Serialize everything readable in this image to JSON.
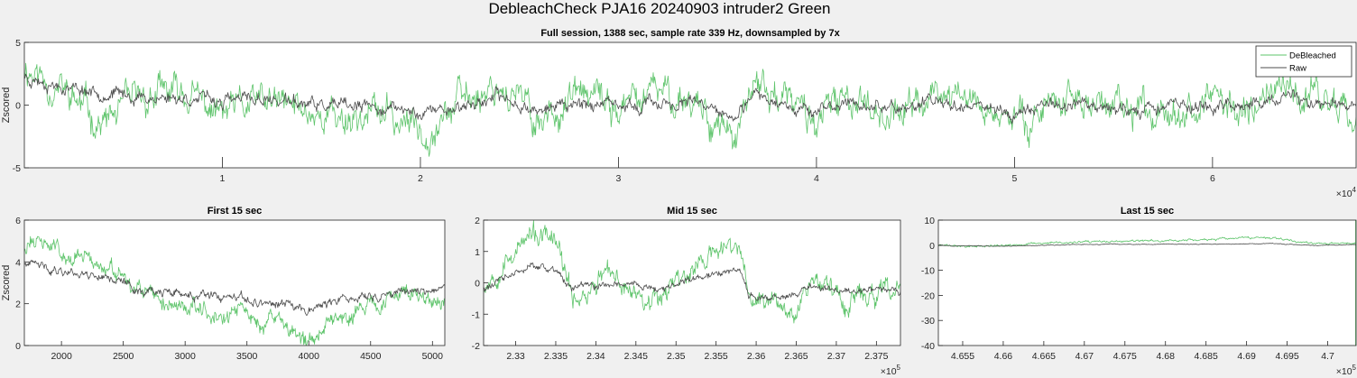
{
  "figure_title": "DebleachCheck PJA16 20240903  intruder2 Green",
  "colors": {
    "debleached": "#5ec46b",
    "raw": "#4d4d4d",
    "axes_bg": "#ffffff",
    "figure_bg": "#f0f0f0"
  },
  "chart_data": [
    {
      "type": "line",
      "title": "Full session, 1388 sec, sample rate 339 Hz, downsampled by 7x",
      "ylabel": "Zscored",
      "xlabel": "",
      "xlim": [
        0,
        67250
      ],
      "ylim": [
        -5,
        5
      ],
      "yticks": [
        -5,
        0,
        5
      ],
      "xticks": [
        1,
        2,
        3,
        4,
        5,
        6
      ],
      "x_exponent": "×10^4",
      "x_exponent_base": "×10",
      "x_exponent_power": "4",
      "legend": {
        "position": "top-right",
        "entries": [
          "DeBleached",
          "Raw"
        ]
      },
      "grid": false,
      "series": [
        {
          "name": "DeBleached",
          "seed": 11,
          "amplitude": 1.55,
          "noise": 1.0,
          "anchors": [
            [
              0,
              3.2
            ],
            [
              2000,
              1.0
            ],
            [
              4000,
              -1.5
            ],
            [
              6000,
              0.6
            ],
            [
              8000,
              1.0
            ],
            [
              10000,
              -0.8
            ],
            [
              12000,
              0.2
            ],
            [
              14000,
              -0.3
            ],
            [
              16000,
              -1.0
            ],
            [
              18000,
              -0.6
            ],
            [
              20000,
              -2.0
            ],
            [
              22000,
              0.3
            ],
            [
              24000,
              1.8
            ],
            [
              26000,
              -1.2
            ],
            [
              28000,
              0.8
            ],
            [
              30000,
              -0.4
            ],
            [
              32000,
              1.0
            ],
            [
              34000,
              0.4
            ],
            [
              35000,
              -1.5
            ],
            [
              36000,
              -2.8
            ],
            [
              37000,
              1.8
            ],
            [
              38000,
              0.8
            ],
            [
              40000,
              -1.2
            ],
            [
              42000,
              0.7
            ],
            [
              44000,
              -0.8
            ],
            [
              46000,
              0.9
            ],
            [
              48000,
              0.5
            ],
            [
              50000,
              -1.6
            ],
            [
              52000,
              0.7
            ],
            [
              54000,
              0.3
            ],
            [
              56000,
              -1.0
            ],
            [
              58000,
              0.5
            ],
            [
              60000,
              -0.2
            ],
            [
              62000,
              0.3
            ],
            [
              64000,
              1.3
            ],
            [
              66000,
              0.4
            ],
            [
              67250,
              0.5
            ]
          ]
        },
        {
          "name": "Raw",
          "seed": 23,
          "amplitude": 0.55,
          "noise": 0.45,
          "anchors": [
            [
              0,
              2.3
            ],
            [
              2000,
              1.5
            ],
            [
              4000,
              1.0
            ],
            [
              6000,
              0.6
            ],
            [
              8000,
              0.6
            ],
            [
              10000,
              0.3
            ],
            [
              12000,
              0.5
            ],
            [
              14000,
              0.1
            ],
            [
              16000,
              -0.2
            ],
            [
              18000,
              -0.2
            ],
            [
              20000,
              -0.6
            ],
            [
              22000,
              -0.1
            ],
            [
              24000,
              0.6
            ],
            [
              26000,
              -0.4
            ],
            [
              28000,
              0.3
            ],
            [
              30000,
              -0.3
            ],
            [
              32000,
              0.2
            ],
            [
              34000,
              0.0
            ],
            [
              35000,
              -0.6
            ],
            [
              36000,
              -1.1
            ],
            [
              37000,
              0.8
            ],
            [
              38000,
              0.4
            ],
            [
              40000,
              -0.5
            ],
            [
              42000,
              0.2
            ],
            [
              44000,
              -0.3
            ],
            [
              46000,
              0.3
            ],
            [
              48000,
              0.1
            ],
            [
              50000,
              -0.7
            ],
            [
              52000,
              0.2
            ],
            [
              54000,
              0.1
            ],
            [
              56000,
              -0.4
            ],
            [
              58000,
              0.1
            ],
            [
              60000,
              -0.1
            ],
            [
              62000,
              0.0
            ],
            [
              64000,
              0.4
            ],
            [
              66000,
              0.0
            ],
            [
              67250,
              0.0
            ]
          ]
        }
      ]
    },
    {
      "type": "line",
      "title": "First 15 sec",
      "ylabel": "Zscored",
      "xlim": [
        1700,
        5100
      ],
      "ylim": [
        0,
        6
      ],
      "yticks": [
        0,
        2,
        4,
        6
      ],
      "xticks": [
        2000,
        2500,
        3000,
        3500,
        4000,
        4500,
        5000
      ],
      "x_exponent": "",
      "grid": false,
      "series": [
        {
          "name": "DeBleached",
          "seed": 31,
          "amplitude": 0.45,
          "noise": 0.35,
          "anchors": [
            [
              1700,
              4.8
            ],
            [
              1850,
              5.0
            ],
            [
              2000,
              4.5
            ],
            [
              2200,
              4.1
            ],
            [
              2400,
              3.6
            ],
            [
              2550,
              2.6
            ],
            [
              2750,
              2.4
            ],
            [
              2950,
              1.7
            ],
            [
              3100,
              2.1
            ],
            [
              3300,
              1.2
            ],
            [
              3450,
              1.7
            ],
            [
              3600,
              1.0
            ],
            [
              3750,
              1.3
            ],
            [
              3900,
              0.4
            ],
            [
              4000,
              0.1
            ],
            [
              4150,
              1.4
            ],
            [
              4300,
              1.5
            ],
            [
              4450,
              2.0
            ],
            [
              4600,
              1.7
            ],
            [
              4750,
              2.7
            ],
            [
              4900,
              2.4
            ],
            [
              5100,
              2.1
            ]
          ]
        },
        {
          "name": "Raw",
          "seed": 41,
          "amplitude": 0.25,
          "noise": 0.16,
          "anchors": [
            [
              1700,
              3.9
            ],
            [
              2000,
              3.6
            ],
            [
              2400,
              3.3
            ],
            [
              2600,
              2.7
            ],
            [
              3000,
              2.4
            ],
            [
              3400,
              2.2
            ],
            [
              3700,
              2.0
            ],
            [
              4000,
              1.8
            ],
            [
              4300,
              2.2
            ],
            [
              4600,
              2.4
            ],
            [
              4900,
              2.7
            ],
            [
              5100,
              2.7
            ]
          ]
        }
      ]
    },
    {
      "type": "line",
      "title": "Mid 15 sec",
      "ylabel": "",
      "xlim": [
        232600,
        237800
      ],
      "ylim": [
        -2,
        2
      ],
      "yticks": [
        -2,
        -1,
        0,
        1,
        2
      ],
      "xticks": [
        2.33,
        2.335,
        2.34,
        2.345,
        2.35,
        2.355,
        2.36,
        2.365,
        2.37,
        2.375
      ],
      "x_exponent": "×10^5",
      "x_exponent_base": "×10",
      "x_exponent_power": "5",
      "grid": false,
      "series": [
        {
          "name": "DeBleached",
          "seed": 53,
          "amplitude": 0.35,
          "noise": 0.3,
          "anchors": [
            [
              232600,
              -0.1
            ],
            [
              232900,
              0.8
            ],
            [
              233200,
              1.5
            ],
            [
              233500,
              1.3
            ],
            [
              233700,
              -0.5
            ],
            [
              233900,
              -0.3
            ],
            [
              234100,
              0.3
            ],
            [
              234400,
              -0.2
            ],
            [
              234700,
              -0.5
            ],
            [
              235000,
              0.1
            ],
            [
              235200,
              0.4
            ],
            [
              235500,
              1.0
            ],
            [
              235800,
              1.2
            ],
            [
              235900,
              -0.6
            ],
            [
              236200,
              -0.5
            ],
            [
              236500,
              -0.8
            ],
            [
              236700,
              0.2
            ],
            [
              236900,
              -0.1
            ],
            [
              237100,
              -0.6
            ],
            [
              237400,
              -0.4
            ],
            [
              237800,
              -0.3
            ]
          ]
        },
        {
          "name": "Raw",
          "seed": 61,
          "amplitude": 0.12,
          "noise": 0.1,
          "anchors": [
            [
              232600,
              -0.2
            ],
            [
              232900,
              0.2
            ],
            [
              233200,
              0.5
            ],
            [
              233500,
              0.4
            ],
            [
              233700,
              -0.2
            ],
            [
              234000,
              -0.1
            ],
            [
              234400,
              0.0
            ],
            [
              234800,
              -0.2
            ],
            [
              235200,
              0.1
            ],
            [
              235500,
              0.3
            ],
            [
              235800,
              0.4
            ],
            [
              235900,
              -0.4
            ],
            [
              236300,
              -0.5
            ],
            [
              236700,
              -0.1
            ],
            [
              237100,
              -0.3
            ],
            [
              237500,
              -0.2
            ],
            [
              237800,
              -0.2
            ]
          ]
        }
      ]
    },
    {
      "type": "line",
      "title": "Last 15 sec",
      "ylabel": "",
      "xlim": [
        465200,
        470350
      ],
      "ylim": [
        -40,
        10
      ],
      "yticks": [
        -40,
        -30,
        -20,
        -10,
        0,
        10
      ],
      "xticks": [
        4.655,
        4.66,
        4.665,
        4.67,
        4.675,
        4.68,
        4.685,
        4.69,
        4.695,
        4.7
      ],
      "x_exponent": "×10^5",
      "x_exponent_base": "×10",
      "x_exponent_power": "5",
      "grid": false,
      "series": [
        {
          "name": "DeBleached",
          "seed": 71,
          "amplitude": 0.45,
          "noise": 0.4,
          "end_spike": [
            -40,
            10
          ],
          "anchors": [
            [
              465200,
              0.0
            ],
            [
              465600,
              -0.5
            ],
            [
              466000,
              -0.2
            ],
            [
              466500,
              0.8
            ],
            [
              467000,
              1.2
            ],
            [
              467500,
              1.5
            ],
            [
              468000,
              1.8
            ],
            [
              468500,
              2.2
            ],
            [
              469000,
              2.8
            ],
            [
              469400,
              3.0
            ],
            [
              469700,
              1.0
            ],
            [
              470000,
              0.8
            ],
            [
              470350,
              0.6
            ]
          ]
        },
        {
          "name": "Raw",
          "seed": 83,
          "amplitude": 0.15,
          "noise": 0.15,
          "anchors": [
            [
              465200,
              -0.1
            ],
            [
              465800,
              -0.4
            ],
            [
              466400,
              -0.1
            ],
            [
              467000,
              0.3
            ],
            [
              467600,
              0.4
            ],
            [
              468200,
              0.3
            ],
            [
              468800,
              0.5
            ],
            [
              469400,
              0.6
            ],
            [
              469800,
              0.0
            ],
            [
              470350,
              0.2
            ]
          ]
        }
      ]
    }
  ]
}
